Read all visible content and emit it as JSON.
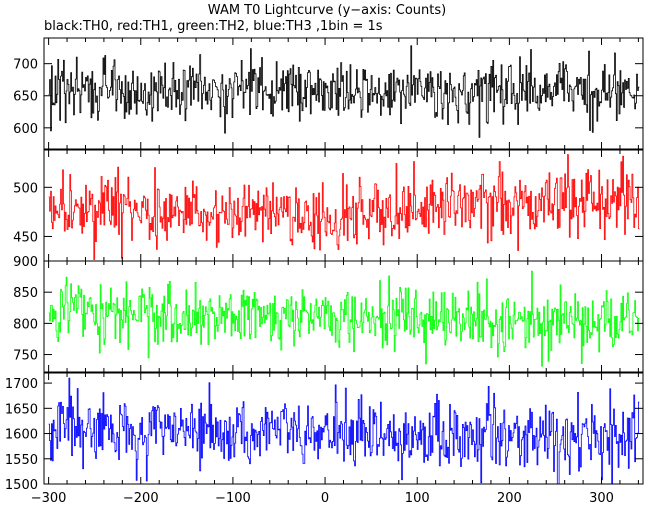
{
  "chart_data": {
    "type": "line",
    "title": "WAM T0 Lightcurve (y−axis: Counts)",
    "subtitle": "black:TH0, red:TH1, green:TH2, blue:TH3 ,1bin = 1s",
    "xlim": [
      -305,
      345
    ],
    "x_ticks": [
      "−300",
      "−200",
      "−100",
      "0",
      "100",
      "200",
      "300"
    ],
    "x_step": 1,
    "grid": false,
    "panels": [
      {
        "name": "TH0",
        "color": "#000000",
        "ylim": [
          567,
          740
        ],
        "y_ticks": [
          {
            "v": 600,
            "t": "600"
          },
          {
            "v": 650,
            "t": "650"
          },
          {
            "v": 700,
            "t": "700"
          }
        ],
        "mean": 658,
        "noise_sd": 23,
        "trend": []
      },
      {
        "name": "TH1",
        "color": "#ff0000",
        "ylim": [
          425,
          538
        ],
        "y_ticks": [
          {
            "v": 450,
            "t": "450"
          },
          {
            "v": 500,
            "t": "500"
          }
        ],
        "mean": 478,
        "noise_sd": 17,
        "trend": [
          [
            -300,
            475
          ],
          [
            -60,
            476
          ],
          [
            20,
            468
          ],
          [
            120,
            484
          ],
          [
            340,
            486
          ]
        ]
      },
      {
        "name": "TH2",
        "color": "#00ff00",
        "ylim": [
          722,
          900
        ],
        "y_ticks": [
          {
            "v": 750,
            "t": "750"
          },
          {
            "v": 800,
            "t": "800"
          },
          {
            "v": 850,
            "t": "850"
          },
          {
            "v": 900,
            "t": "900"
          }
        ],
        "mean": 810,
        "noise_sd": 25,
        "trend": [
          [
            -300,
            818
          ],
          [
            340,
            800
          ]
        ]
      },
      {
        "name": "TH3",
        "color": "#0000ff",
        "ylim": [
          1500,
          1720
        ],
        "y_ticks": [
          {
            "v": 1500,
            "t": "1500"
          },
          {
            "v": 1550,
            "t": "1550"
          },
          {
            "v": 1600,
            "t": "1600"
          },
          {
            "v": 1650,
            "t": "1650"
          },
          {
            "v": 1700,
            "t": "1700"
          }
        ],
        "mean": 1607,
        "noise_sd": 35,
        "trend": [
          [
            -300,
            1610
          ],
          [
            340,
            1590
          ]
        ]
      }
    ]
  }
}
